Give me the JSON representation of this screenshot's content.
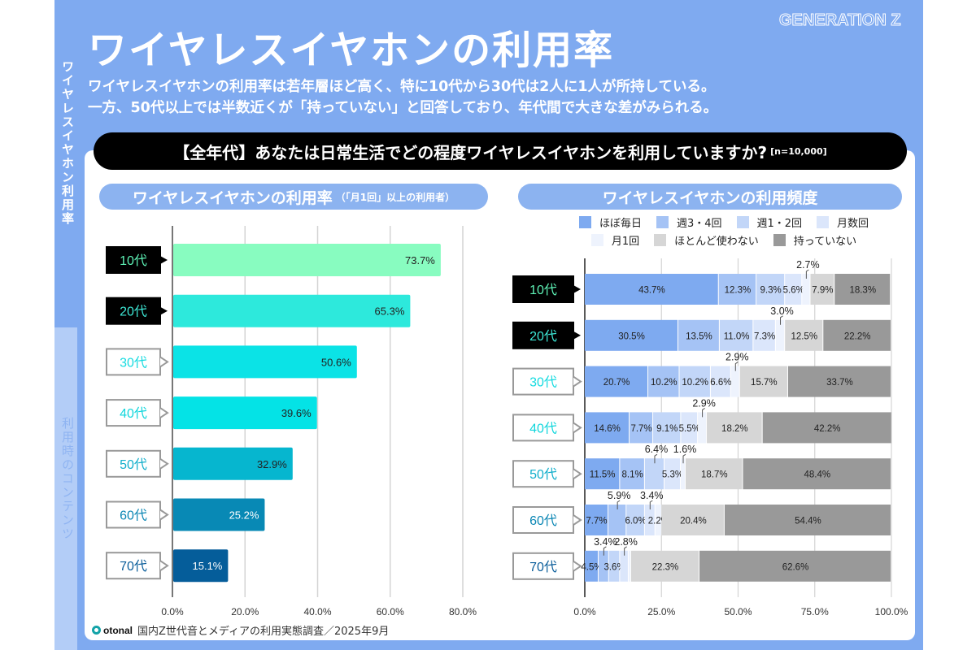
{
  "page": {
    "title": "ワイヤレスイヤホンの利用率",
    "brand_tag": "GENERATION Z",
    "lead_line1": "ワイヤレスイヤホンの利用率は若年層ほど高く、特に10代から30代は2人に1人が所持している。",
    "lead_line2": "一方、50代以上では半数近くが「持っていない」と回答しており、年代間で大きな差がみられる。",
    "question": "【全年代】あなたは日常生活でどの程度ワイヤレスイヤホンを利用していますか?",
    "sample": "[n=10,000]",
    "source": "国内Z世代音とメディアの利用実態調査／2025年9月",
    "logo_text": "otonal"
  },
  "sidebar": {
    "active": "ワイヤレスイヤホン利用率",
    "inactive": "利用時のコンテンツ"
  },
  "colors": {
    "slide_bg": "#7faaf0",
    "pill": "#8cb3f0",
    "question_bg": "#000000"
  },
  "chart_data": [
    {
      "type": "bar",
      "orientation": "horizontal",
      "title": "ワイヤレスイヤホンの利用率",
      "subtitle": "（「月1回」以上の利用者）",
      "categories": [
        "10代",
        "20代",
        "30代",
        "40代",
        "50代",
        "60代",
        "70代"
      ],
      "values": [
        73.7,
        65.3,
        50.6,
        39.6,
        32.9,
        25.2,
        15.1
      ],
      "value_labels": [
        "73.7%",
        "65.3%",
        "50.6%",
        "39.6%",
        "32.9%",
        "25.2%",
        "15.1%"
      ],
      "bar_colors": [
        "#88fcc0",
        "#2de9dc",
        "#0be3e6",
        "#04e3e6",
        "#06b6cf",
        "#0889b5",
        "#055d9a"
      ],
      "label_colors": [
        "#222222",
        "#222222",
        "#222222",
        "#222222",
        "#222222",
        "#ffffff",
        "#ffffff"
      ],
      "category_highlight": [
        true,
        true,
        false,
        false,
        false,
        false,
        false
      ],
      "category_text_colors": [
        "#5ef2b6",
        "#3ee8d6",
        "#16dbe0",
        "#10d6dc",
        "#10aecb",
        "#0a86b4",
        "#0a5d9a"
      ],
      "xlim": [
        0,
        80
      ],
      "xticks": [
        0,
        20,
        40,
        60,
        80
      ],
      "xtick_labels": [
        "0.0%",
        "20.0%",
        "40.0%",
        "60.0%",
        "80.0%"
      ],
      "grid": true,
      "xlabel": "",
      "ylabel": ""
    },
    {
      "type": "bar",
      "orientation": "horizontal",
      "stacked": true,
      "title": "ワイヤレスイヤホンの利用頻度",
      "categories": [
        "10代",
        "20代",
        "30代",
        "40代",
        "50代",
        "60代",
        "70代"
      ],
      "series": [
        {
          "name": "ほぼ毎日",
          "color": "#7eaaf0",
          "values": [
            43.7,
            30.5,
            20.7,
            14.6,
            11.5,
            7.7,
            4.5
          ]
        },
        {
          "name": "週3・4回",
          "color": "#a5c3f5",
          "values": [
            12.3,
            13.5,
            10.2,
            7.7,
            8.1,
            5.9,
            3.4
          ]
        },
        {
          "name": "週1・2回",
          "color": "#c2d6f8",
          "values": [
            9.3,
            11.0,
            10.2,
            9.1,
            6.4,
            6.0,
            3.6
          ]
        },
        {
          "name": "月数回",
          "color": "#dbe6fb",
          "values": [
            5.6,
            7.3,
            6.6,
            5.5,
            5.3,
            3.4,
            2.8
          ]
        },
        {
          "name": "月1回",
          "color": "#eef3fd",
          "values": [
            2.7,
            3.0,
            2.9,
            2.9,
            1.6,
            2.2,
            0.8
          ]
        },
        {
          "name": "ほとんど使わない",
          "color": "#d6d6d6",
          "values": [
            7.9,
            12.5,
            15.7,
            18.2,
            18.7,
            20.4,
            22.3
          ]
        },
        {
          "name": "持っていない",
          "color": "#999999",
          "values": [
            18.3,
            22.2,
            33.7,
            42.2,
            48.4,
            54.4,
            62.6
          ]
        }
      ],
      "callouts": [
        {
          "row": 0,
          "series": 4,
          "label": "2.7%"
        },
        {
          "row": 1,
          "series": 4,
          "label": "3.0%"
        },
        {
          "row": 2,
          "series": 4,
          "label": "2.9%"
        },
        {
          "row": 3,
          "series": 4,
          "label": "2.9%"
        },
        {
          "row": 4,
          "series": 2,
          "label": "6.4%"
        },
        {
          "row": 4,
          "series": 4,
          "label": "1.6%"
        },
        {
          "row": 5,
          "series": 1,
          "label": "5.9%"
        },
        {
          "row": 5,
          "series": 3,
          "label": "3.4%"
        },
        {
          "row": 6,
          "series": 1,
          "label": "3.4%"
        },
        {
          "row": 6,
          "series": 3,
          "label": "2.8%"
        }
      ],
      "inline_labels": [
        [
          "43.7%",
          "12.3%",
          "9.3%",
          "5.6%",
          "",
          "7.9%",
          "18.3%"
        ],
        [
          "30.5%",
          "13.5%",
          "11.0%",
          "7.3%",
          "",
          "12.5%",
          "22.2%"
        ],
        [
          "20.7%",
          "10.2%",
          "10.2%",
          "6.6%",
          "",
          "15.7%",
          "33.7%"
        ],
        [
          "14.6%",
          "7.7%",
          "9.1%",
          "5.5%",
          "",
          "18.2%",
          "42.2%"
        ],
        [
          "11.5%",
          "8.1%",
          "",
          "5.3%",
          "",
          "18.7%",
          "48.4%"
        ],
        [
          "7.7%",
          "",
          "6.0%",
          "",
          "2.2%",
          "20.4%",
          "54.4%"
        ],
        [
          "4.5%",
          "",
          "3.6%",
          "",
          "",
          "22.3%",
          "62.6%"
        ]
      ],
      "category_highlight": [
        true,
        true,
        false,
        false,
        false,
        false,
        false
      ],
      "category_text_colors": [
        "#5ef2b6",
        "#3ee8d6",
        "#16dbe0",
        "#10d6dc",
        "#10aecb",
        "#0a86b4",
        "#0a5d9a"
      ],
      "xlim": [
        0,
        100
      ],
      "xticks": [
        0,
        25,
        50,
        75,
        100
      ],
      "xtick_labels": [
        "0.0%",
        "25.0%",
        "50.0%",
        "75.0%",
        "100.0%"
      ],
      "grid": true,
      "legend_position": "top",
      "xlabel": "",
      "ylabel": ""
    }
  ]
}
